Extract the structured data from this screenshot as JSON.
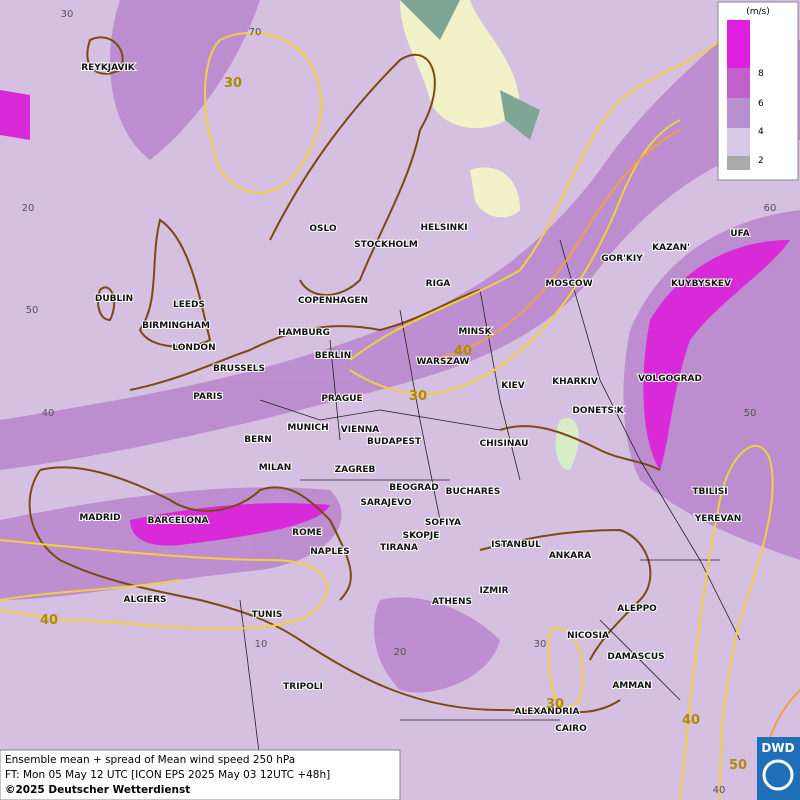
{
  "header": {
    "unit": "(m/s)"
  },
  "legend": {
    "levels": [
      8,
      6,
      4,
      2
    ]
  },
  "map": {
    "cities": [
      "REYKJAVIK",
      "OSLO",
      "STOCKHOLM",
      "HELSINKI",
      "DUBLIN",
      "LEEDS",
      "BIRMINGHAM",
      "LONDON",
      "COPENHAGEN",
      "HAMBURG",
      "RIGA",
      "MOSCOW",
      "GOR'KIY",
      "KAZAN'",
      "UFA",
      "KUYBYSKEV",
      "MINSK",
      "BERLIN",
      "WARSZAW",
      "BRUSSELS",
      "KIEV",
      "KHARKIV",
      "VOLGOGRAD",
      "PARIS",
      "PRAGUE",
      "DONETS'K",
      "MUNICH",
      "VIENNA",
      "BERN",
      "BUDAPEST",
      "CHISINAU",
      "MILAN",
      "ZAGREB",
      "BEOGRAD",
      "BUCHARES",
      "TBILISI",
      "SARAJEVO",
      "MADRID",
      "BARCELONA",
      "SOFIYA",
      "YEREVAN",
      "ROME",
      "SKOPJE",
      "ISTANBUL",
      "TIRANA",
      "NAPLES",
      "ANKARA",
      "ALGIERS",
      "IZMIR",
      "ATHENS",
      "ALEPPO",
      "TUNIS",
      "NICOSIA",
      "DAMASCUS",
      "TRIPOLI",
      "AMMAN",
      "ALEXANDRIA",
      "CAIRO"
    ],
    "contour_labels": [
      "30",
      "40",
      "30",
      "40",
      "30",
      "40",
      "50"
    ],
    "grid_labels": [
      "30",
      "70",
      "20",
      "60",
      "50",
      "50",
      "40",
      "10",
      "20",
      "30",
      "40"
    ]
  },
  "footer": {
    "lines": [
      "Ensemble mean + spread of Mean wind speed 250 hPa",
      "FT: Mon 05 May 12 UTC [ICON EPS 2025 May 03 12UTC +48h]",
      "©2025 Deutscher Wetterdienst"
    ],
    "logo": "DWD"
  }
}
